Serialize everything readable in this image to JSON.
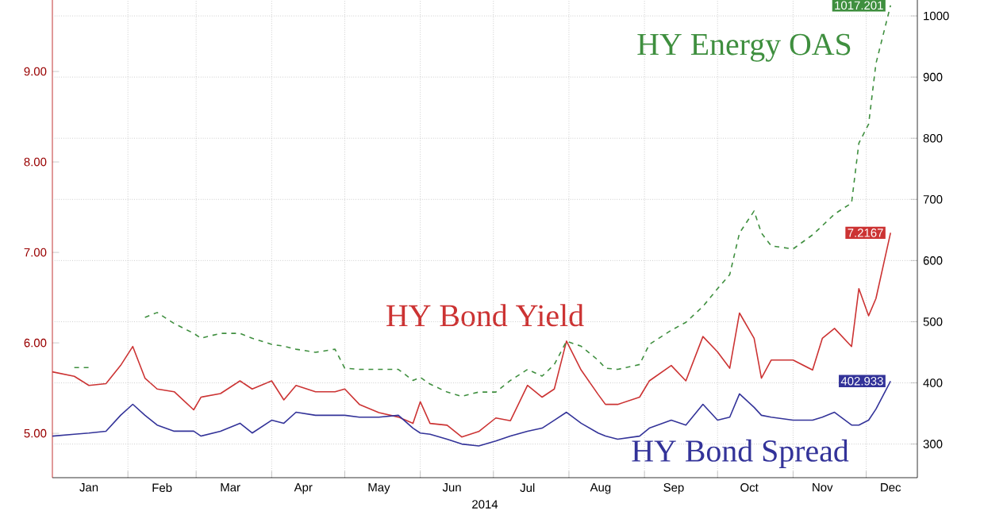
{
  "chart_data": {
    "type": "line",
    "xlabel": "2014",
    "x": [
      "2014-01-01",
      "2014-01-10",
      "2014-01-16",
      "2014-01-23",
      "2014-01-29",
      "2014-02-03",
      "2014-02-08",
      "2014-02-13",
      "2014-02-20",
      "2014-02-28",
      "2014-03-03",
      "2014-03-11",
      "2014-03-19",
      "2014-03-24",
      "2014-04-01",
      "2014-04-06",
      "2014-04-11",
      "2014-04-19",
      "2014-04-27",
      "2014-05-01",
      "2014-05-07",
      "2014-05-15",
      "2014-05-23",
      "2014-05-29",
      "2014-06-01",
      "2014-06-05",
      "2014-06-12",
      "2014-06-18",
      "2014-06-25",
      "2014-07-02",
      "2014-07-08",
      "2014-07-15",
      "2014-07-21",
      "2014-07-26",
      "2014-07-31",
      "2014-08-06",
      "2014-08-13",
      "2014-08-16",
      "2014-08-21",
      "2014-08-30",
      "2014-09-03",
      "2014-09-12",
      "2014-09-18",
      "2014-09-25",
      "2014-10-01",
      "2014-10-06",
      "2014-10-10",
      "2014-10-16",
      "2014-10-19",
      "2014-10-23",
      "2014-11-01",
      "2014-11-09",
      "2014-11-13",
      "2014-11-18",
      "2014-11-25",
      "2014-11-28",
      "2014-12-02",
      "2014-12-05",
      "2014-12-11"
    ],
    "series": [
      {
        "name": "HY Energy OAS",
        "color": "#3f8f3f",
        "axis": "y2",
        "line_style": "dashed",
        "values": [
          null,
          425,
          425,
          null,
          null,
          null,
          507,
          515,
          497,
          481,
          473,
          481,
          481,
          473,
          463,
          460,
          455,
          450,
          455,
          424,
          422,
          422,
          422,
          404,
          409,
          398,
          385,
          378,
          385,
          385,
          404,
          422,
          411,
          430,
          468,
          460,
          437,
          424,
          422,
          430,
          463,
          486,
          499,
          525,
          554,
          577,
          645,
          681,
          645,
          624,
          619,
          642,
          657,
          676,
          694,
          792,
          823,
          922,
          1017.201
        ],
        "value_labels": [
          null,
          null,
          null,
          null,
          null,
          null,
          null,
          null,
          null,
          null,
          null,
          null,
          null,
          null,
          null,
          null,
          null,
          null,
          null,
          null,
          null,
          null,
          null,
          null,
          null,
          null,
          null,
          null,
          null,
          null,
          null,
          null,
          null,
          null,
          null,
          null,
          null,
          null,
          null,
          null,
          null,
          null,
          null,
          null,
          null,
          null,
          null,
          null,
          null,
          null,
          null,
          null,
          null,
          null,
          null,
          null,
          null,
          null,
          "1017.201"
        ]
      },
      {
        "name": "HY Bond Yield",
        "color": "#cc3333",
        "axis": "y",
        "values": [
          5.68,
          5.63,
          5.53,
          5.55,
          5.75,
          5.96,
          5.61,
          5.49,
          5.46,
          5.26,
          5.4,
          5.44,
          5.58,
          5.49,
          5.58,
          5.37,
          5.53,
          5.46,
          5.46,
          5.49,
          5.32,
          5.23,
          5.18,
          5.11,
          5.35,
          5.11,
          5.09,
          4.96,
          5.02,
          5.17,
          5.14,
          5.53,
          5.4,
          5.49,
          6.02,
          5.7,
          5.43,
          5.32,
          5.32,
          5.4,
          5.58,
          5.75,
          5.58,
          6.07,
          5.9,
          5.72,
          6.33,
          6.05,
          5.61,
          5.81,
          5.81,
          5.7,
          6.05,
          6.16,
          5.96,
          6.6,
          6.3,
          6.49,
          7.2167
        ],
        "value_labels": [
          null,
          null,
          null,
          null,
          null,
          null,
          null,
          null,
          null,
          null,
          null,
          null,
          null,
          null,
          null,
          null,
          null,
          null,
          null,
          null,
          null,
          null,
          null,
          null,
          null,
          null,
          null,
          null,
          null,
          null,
          null,
          null,
          null,
          null,
          null,
          null,
          null,
          null,
          null,
          null,
          null,
          null,
          null,
          null,
          null,
          null,
          null,
          null,
          null,
          null,
          null,
          null,
          null,
          null,
          null,
          null,
          null,
          null,
          "7.2167"
        ]
      },
      {
        "name": "HY Bond Spread",
        "color": "#333399",
        "axis": "y2",
        "values": [
          313,
          316,
          318,
          321,
          347,
          365,
          347,
          331,
          321,
          321,
          313,
          321,
          334,
          318,
          339,
          334,
          352,
          347,
          347,
          347,
          344,
          344,
          347,
          326,
          318,
          316,
          308,
          300,
          297,
          305,
          313,
          321,
          326,
          339,
          352,
          334,
          318,
          313,
          308,
          313,
          326,
          339,
          331,
          365,
          339,
          344,
          382,
          360,
          347,
          344,
          339,
          339,
          344,
          352,
          331,
          331,
          339,
          357,
          402.933
        ],
        "value_labels": [
          null,
          null,
          null,
          null,
          null,
          null,
          null,
          null,
          null,
          null,
          null,
          null,
          null,
          null,
          null,
          null,
          null,
          null,
          null,
          null,
          null,
          null,
          null,
          null,
          null,
          null,
          null,
          null,
          null,
          null,
          null,
          null,
          null,
          null,
          null,
          null,
          null,
          null,
          null,
          null,
          null,
          null,
          null,
          null,
          null,
          null,
          null,
          null,
          null,
          null,
          null,
          null,
          null,
          null,
          null,
          null,
          null,
          null,
          "402.933"
        ]
      }
    ],
    "xlim": [
      "2014-01-01",
      "2014-12-22"
    ],
    "xticks": [
      {
        "value": "2014-02-01",
        "label": null
      },
      {
        "value": "2014-03-01",
        "label": null
      },
      {
        "value": "2014-04-01",
        "label": null
      },
      {
        "value": "2014-05-01",
        "label": null
      },
      {
        "value": "2014-06-01",
        "label": null
      },
      {
        "value": "2014-07-01",
        "label": null
      },
      {
        "value": "2014-08-01",
        "label": null
      },
      {
        "value": "2014-09-01",
        "label": null
      },
      {
        "value": "2014-10-01",
        "label": null
      },
      {
        "value": "2014-11-01",
        "label": null
      },
      {
        "value": "2014-12-01",
        "label": null
      },
      {
        "value": "2014-01-16",
        "label": "Jan"
      },
      {
        "value": "2014-02-15",
        "label": "Feb"
      },
      {
        "value": "2014-03-15",
        "label": "Mar"
      },
      {
        "value": "2014-04-14",
        "label": "Apr"
      },
      {
        "value": "2014-05-15",
        "label": "May"
      },
      {
        "value": "2014-06-14",
        "label": "Jun"
      },
      {
        "value": "2014-07-15",
        "label": "Jul"
      },
      {
        "value": "2014-08-14",
        "label": "Aug"
      },
      {
        "value": "2014-09-13",
        "label": "Sep"
      },
      {
        "value": "2014-10-14",
        "label": "Oct"
      },
      {
        "value": "2014-11-13",
        "label": "Nov"
      },
      {
        "value": "2014-12-11",
        "label": "Dec"
      }
    ],
    "ylim": [
      4.51,
      9.79
    ],
    "yticks": [
      {
        "value": 5,
        "label": "5.00"
      },
      {
        "value": 6,
        "label": "6.00"
      },
      {
        "value": 7,
        "label": "7.00"
      },
      {
        "value": 8,
        "label": "8.00"
      },
      {
        "value": 9,
        "label": "9.00"
      }
    ],
    "y2lim": [
      245,
      1026
    ],
    "y2ticks": [
      300,
      400,
      500,
      600,
      700,
      800,
      900,
      1000
    ],
    "grid": true
  }
}
